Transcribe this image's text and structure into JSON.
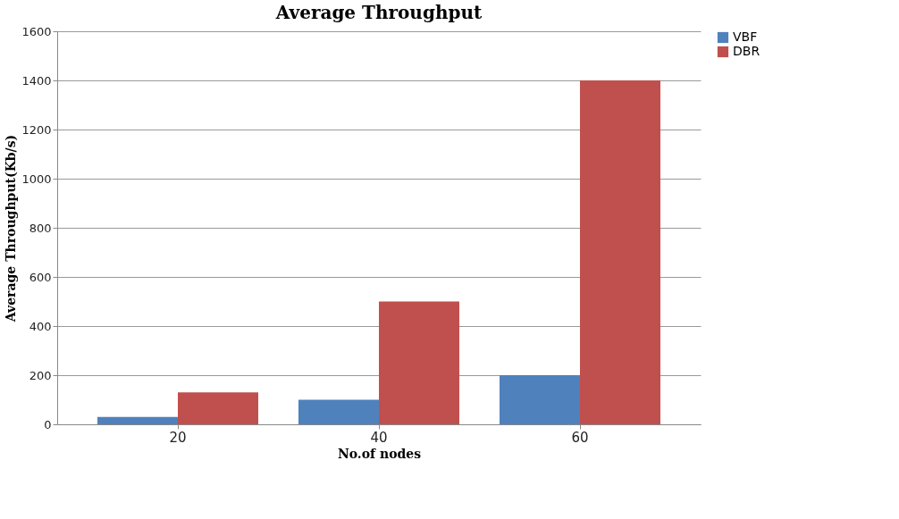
{
  "chart_data": {
    "type": "bar",
    "title": "Average Throughput",
    "xlabel": "No.of nodes",
    "ylabel": "Average Throughput(Kb/s)",
    "categories": [
      "20",
      "40",
      "60"
    ],
    "series": [
      {
        "name": "VBF",
        "color": "#4f81bd",
        "values": [
          30,
          100,
          200
        ]
      },
      {
        "name": "DBR",
        "color": "#c0504d",
        "values": [
          130,
          500,
          1400
        ]
      }
    ],
    "ylim": [
      0,
      1600
    ],
    "yticks": [
      0,
      200,
      400,
      600,
      800,
      1000,
      1200,
      1400,
      1600
    ],
    "grid": "y",
    "legend": "right"
  }
}
